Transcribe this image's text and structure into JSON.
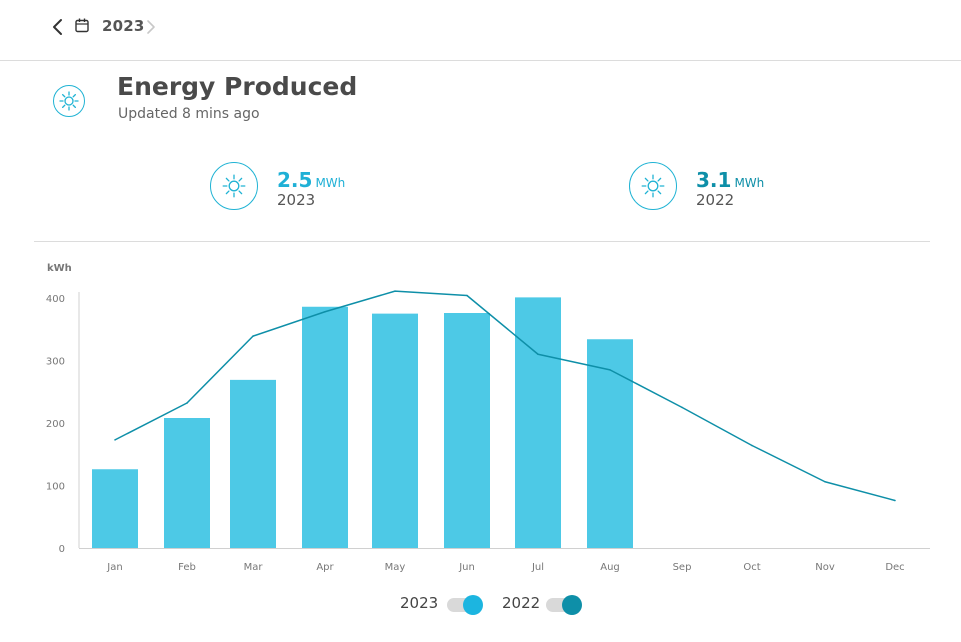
{
  "nav": {
    "year": "2023"
  },
  "header": {
    "title": "Energy Produced",
    "updated": "Updated 8 mins ago"
  },
  "stats": [
    {
      "value": "2.5",
      "unit": "MWh",
      "year": "2023",
      "color": "#1fb0d6"
    },
    {
      "value": "3.1",
      "unit": "MWh",
      "year": "2022",
      "color": "#0e8fa8"
    }
  ],
  "legend": [
    {
      "label": "2023",
      "enabled": true,
      "color": "#1cb5e0"
    },
    {
      "label": "2022",
      "enabled": true,
      "color": "#0e8fa8"
    }
  ],
  "chart_data": {
    "type": "bar",
    "ylabel": "kWh",
    "ylim": [
      0,
      410
    ],
    "yticks": [
      0,
      100,
      200,
      300,
      400
    ],
    "categories": [
      "Jan",
      "Feb",
      "Mar",
      "Apr",
      "May",
      "Jun",
      "Jul",
      "Aug",
      "Sep",
      "Oct",
      "Nov",
      "Dec"
    ],
    "grid": false,
    "legend_position": "bottom",
    "series": [
      {
        "name": "2023",
        "type": "bar",
        "color": "#4dc9e6",
        "values": [
          126,
          208,
          269,
          386,
          375,
          376,
          401,
          334,
          null,
          null,
          null,
          null
        ]
      },
      {
        "name": "2022",
        "type": "line",
        "color": "#0e8fa8",
        "values": [
          173,
          232,
          339,
          378,
          411,
          404,
          310,
          285,
          225,
          164,
          106,
          76
        ]
      }
    ]
  }
}
